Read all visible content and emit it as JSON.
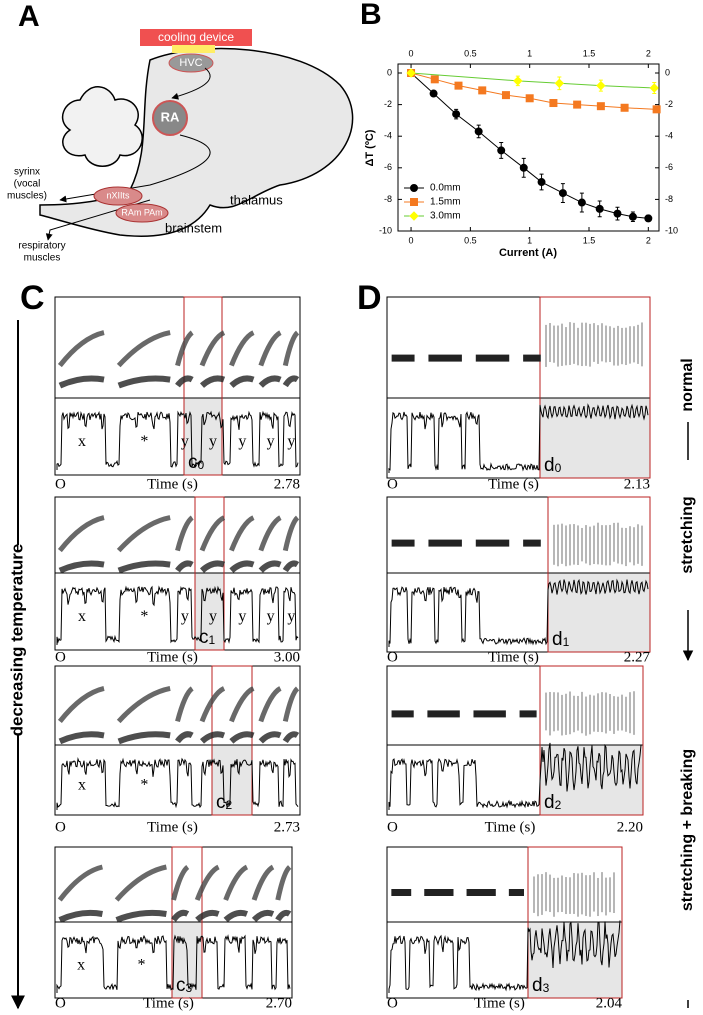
{
  "panel_a": {
    "letter": "A",
    "cooling_device": "cooling device",
    "hvc": "HVC",
    "ra": "RA",
    "nxiits": "nXIIts",
    "ram_pam": "RAm PAm",
    "thalamus": "thalamus",
    "brainstem": "brainstem",
    "syrinx": [
      "syrinx",
      "(vocal",
      "muscles)"
    ],
    "respiratory": [
      "respiratory",
      "muscles"
    ]
  },
  "chart_data": {
    "type": "line",
    "panel_label": "B",
    "x_label": "Current (A)",
    "y_label": "ΔT (ºC)",
    "xlim": [
      -0.11,
      2.09
    ],
    "ylim": [
      -10,
      0.57
    ],
    "xticks": [
      0,
      0.5,
      1,
      1.5,
      2
    ],
    "yticks": [
      0,
      -2,
      -4,
      -6,
      -8,
      -10
    ],
    "legend": "lower left",
    "series": [
      {
        "name": "0.0mm",
        "color": "#000000",
        "line_color": "#000000",
        "marker": "circle",
        "x": [
          0,
          0.19,
          0.38,
          0.57,
          0.76,
          0.95,
          1.1,
          1.28,
          1.44,
          1.59,
          1.74,
          1.87,
          2.0
        ],
        "values": [
          0,
          -1.3,
          -2.6,
          -3.7,
          -4.9,
          -6.0,
          -6.9,
          -7.6,
          -8.2,
          -8.6,
          -8.9,
          -9.1,
          -9.2
        ],
        "errors": [
          0,
          0.1,
          0.3,
          0.4,
          0.5,
          0.6,
          0.5,
          0.6,
          0.6,
          0.5,
          0.4,
          0.3,
          0.2
        ]
      },
      {
        "name": "1.5mm",
        "color": "#f47920",
        "line_color": "#f47920",
        "marker": "square",
        "x": [
          0,
          0.2,
          0.4,
          0.6,
          0.8,
          1.0,
          1.2,
          1.4,
          1.6,
          1.8,
          2.07
        ],
        "values": [
          0,
          -0.4,
          -0.8,
          -1.1,
          -1.4,
          -1.6,
          -1.9,
          -2.0,
          -2.1,
          -2.2,
          -2.3
        ],
        "errors": [
          0,
          0.1,
          0.15,
          0.15,
          0.15,
          0.2,
          0.2,
          0.2,
          0.2,
          0.2,
          0.2
        ]
      },
      {
        "name": "3.0mm",
        "color": "#ffff00",
        "line_color": "#66cc33",
        "marker": "diamond",
        "x": [
          0,
          0.9,
          1.25,
          1.6,
          2.05
        ],
        "values": [
          0,
          -0.5,
          -0.65,
          -0.8,
          -0.95
        ],
        "errors": [
          0,
          0.3,
          0.4,
          0.35,
          0.35
        ]
      }
    ]
  },
  "panel_c": {
    "letter": "C",
    "side_label": "decreasing temperature",
    "panels": [
      {
        "origin": "O",
        "time_label": "Time (s)",
        "end": "2.78",
        "syllables": [
          "x",
          "*",
          "y",
          "y",
          "y",
          "y",
          "y"
        ],
        "segment": "c",
        "segment_index": "0"
      },
      {
        "origin": "O",
        "time_label": "Time (s)",
        "end": "3.00",
        "syllables": [
          "x",
          "*",
          "y",
          "y",
          "y",
          "y",
          "y"
        ],
        "segment": "c",
        "segment_index": "1"
      },
      {
        "origin": "O",
        "time_label": "Time (s)",
        "end": "2.73",
        "syllables": [
          "x",
          "*"
        ],
        "segment": "c",
        "segment_index": "2"
      },
      {
        "origin": "O",
        "time_label": "Time (s)",
        "end": "2.70",
        "syllables": [
          "x",
          "*"
        ],
        "segment": "c",
        "segment_index": "3"
      }
    ]
  },
  "panel_d": {
    "letter": "D",
    "side_labels": [
      "normal",
      "stretching",
      "stretching + breaking"
    ],
    "panels": [
      {
        "origin": "O",
        "time_label": "Time (s)",
        "end": "2.13",
        "segment": "d",
        "segment_index": "0"
      },
      {
        "origin": "O",
        "time_label": "Time (s)",
        "end": "2.27",
        "segment": "d",
        "segment_index": "1"
      },
      {
        "origin": "O",
        "time_label": "Time (s)",
        "end": "2.20",
        "segment": "d",
        "segment_index": "2"
      },
      {
        "origin": "O",
        "time_label": "Time (s)",
        "end": "2.04",
        "segment": "d",
        "segment_index": "3"
      }
    ]
  }
}
